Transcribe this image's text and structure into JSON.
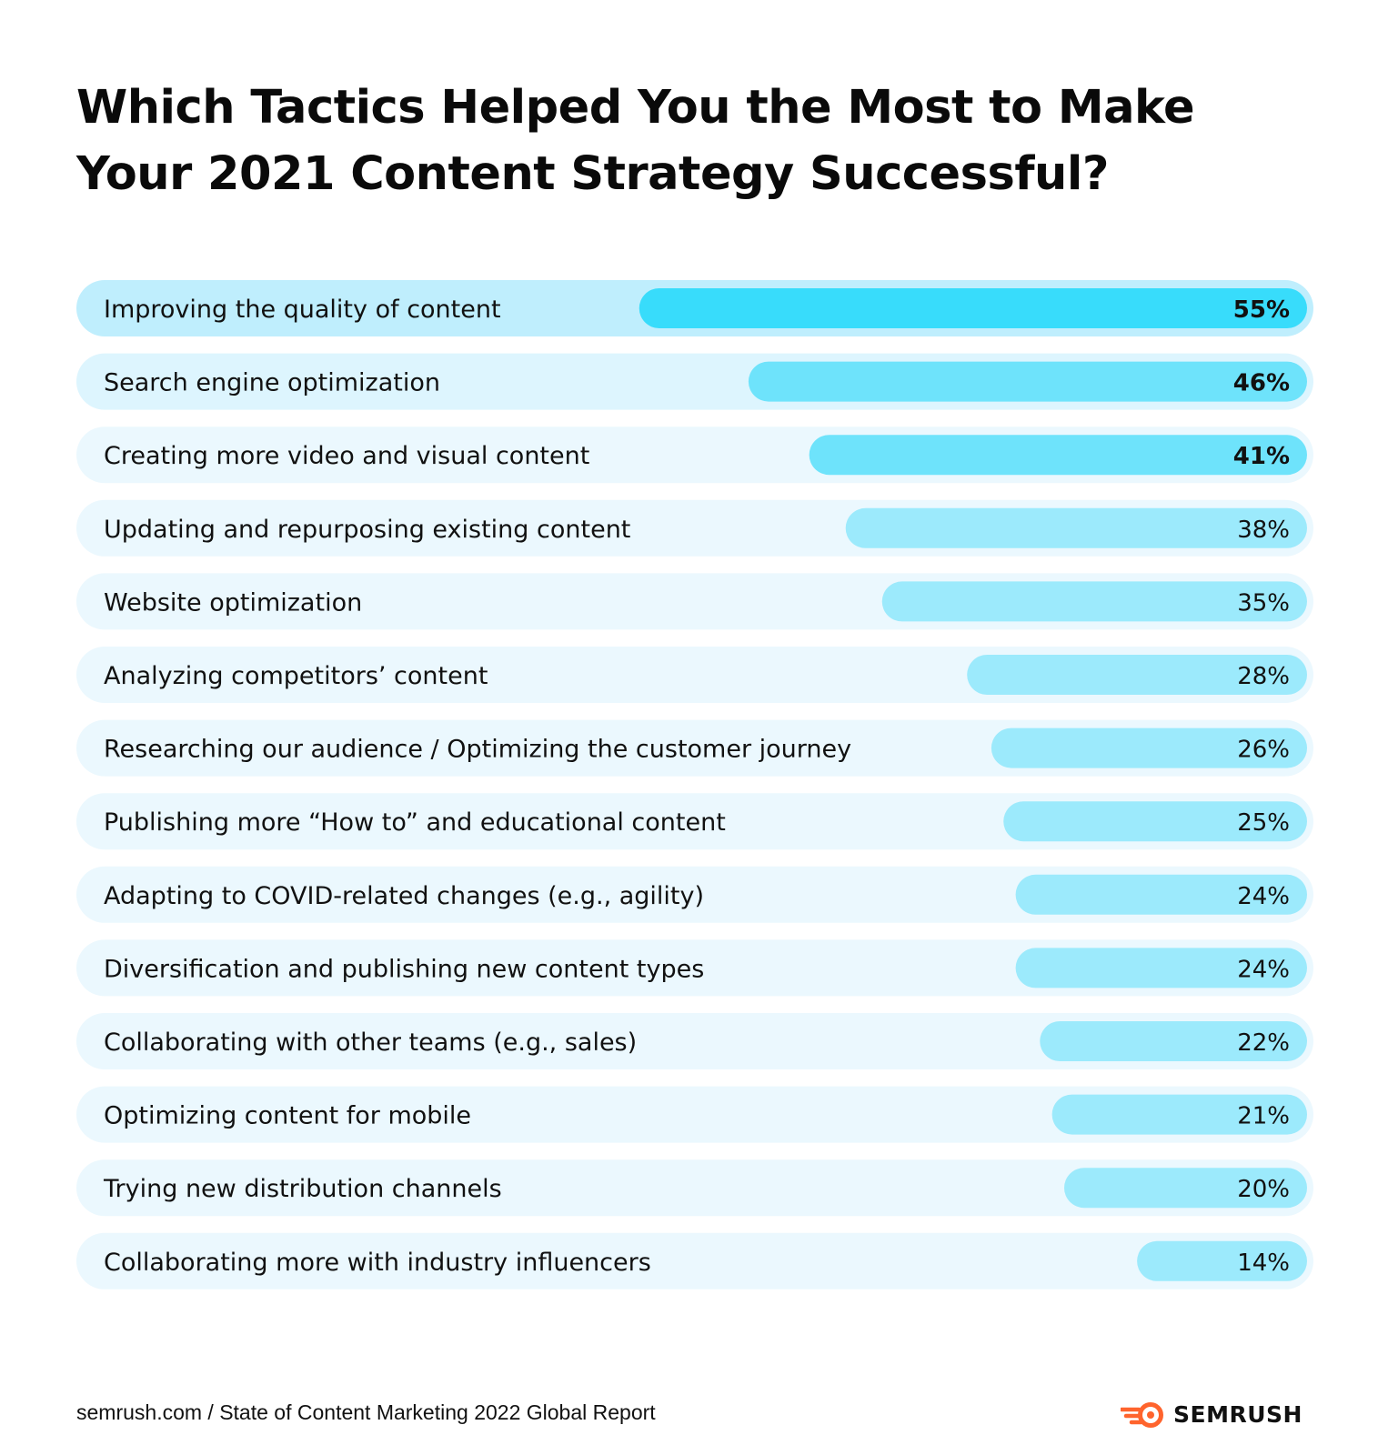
{
  "title": {
    "line1": "Which Tactics Helped You the Most to Make",
    "line2": "Your 2021 Content Strategy Successful?"
  },
  "chart_data": {
    "type": "bar",
    "orientation": "horizontal",
    "title": "Which Tactics Helped You the Most to Make Your 2021 Content Strategy Successful?",
    "categories": [
      "Improving the quality of content",
      "Search engine optimization",
      "Creating more video and visual content",
      "Updating and repurposing existing content",
      "Website optimization",
      "Analyzing competitors’ content",
      "Researching our audience / Optimizing the customer journey",
      "Publishing more “How to” and educational content",
      "Adapting to COVID-related changes (e.g., agility)",
      "Diversification and publishing new content types",
      "Collaborating with other teams (e.g., sales)",
      "Optimizing content for mobile",
      "Trying new distribution channels",
      "Collaborating more with industry influencers"
    ],
    "values": [
      55,
      46,
      41,
      38,
      35,
      28,
      26,
      25,
      24,
      24,
      22,
      21,
      20,
      14
    ],
    "value_labels": [
      "55%",
      "46%",
      "41%",
      "38%",
      "35%",
      "28%",
      "26%",
      "25%",
      "24%",
      "24%",
      "22%",
      "21%",
      "20%",
      "14%"
    ],
    "unit": "%",
    "xlim": [
      0,
      100
    ],
    "grid": false,
    "legend": "none",
    "colors": {
      "bar_top": "#38dcfb",
      "bar_bold": "#6ee3fb",
      "bar_regular": "#9ceafc",
      "track_top": "#bfeefd",
      "track_second": "#ddf5fe",
      "track_regular": "#ebf8fe"
    },
    "bold_value_rows": 3
  },
  "footer": {
    "source": "semrush.com / State of Content Marketing 2022 Global Report",
    "brand": "SEMRUSH"
  },
  "brand_colors": {
    "logo_orange": "#ff642d",
    "text": "#111111"
  }
}
